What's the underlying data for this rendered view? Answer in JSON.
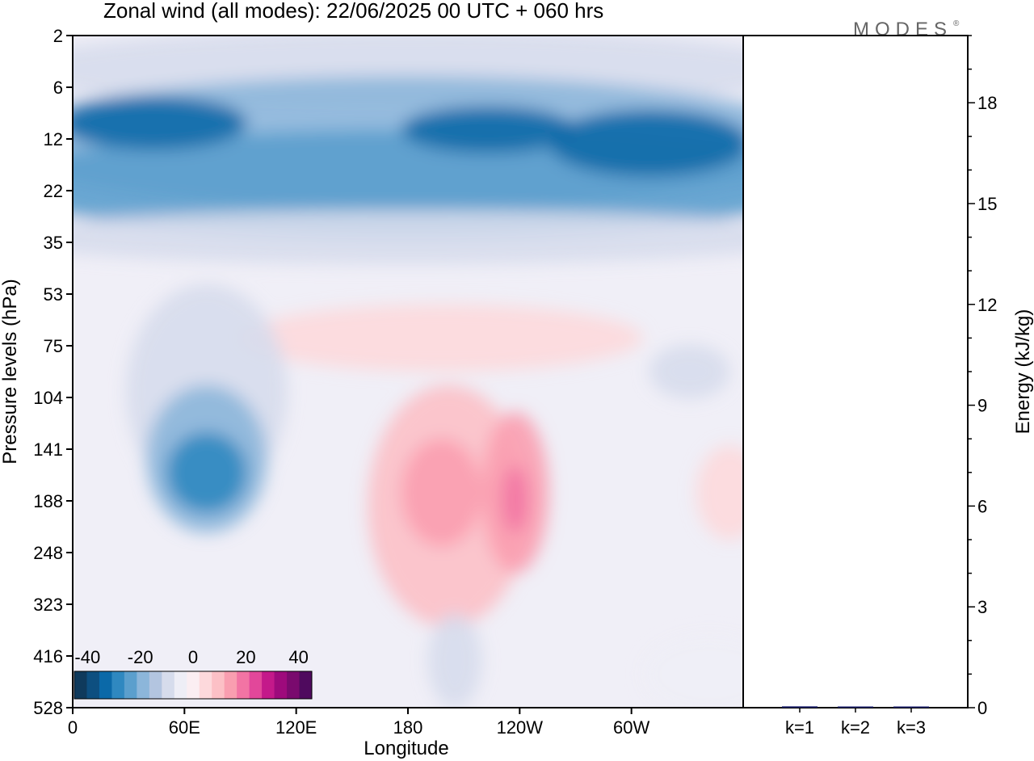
{
  "title": "Zonal wind (all modes):  22/06/2025  00 UTC  + 060 hrs",
  "logo": "MODES",
  "chart_data": [
    {
      "type": "heatmap",
      "xlabel": "Longitude",
      "ylabel": "Pressure levels (hPa)",
      "x_ticks": [
        "0",
        "60E",
        "120E",
        "180",
        "120W",
        "60W"
      ],
      "x_tick_degrees": [
        0,
        60,
        120,
        180,
        240,
        300
      ],
      "xlim": [
        0,
        360
      ],
      "y_ticks": [
        "2",
        "6",
        "12",
        "22",
        "35",
        "53",
        "75",
        "104",
        "141",
        "188",
        "248",
        "323",
        "416",
        "528"
      ],
      "y_scale": "categorical pressure levels, 2 hPa at top, 528 hPa at bottom",
      "colorbar": {
        "tick_labels": [
          "-40",
          "-20",
          "0",
          "20",
          "40"
        ],
        "range": [
          -45,
          45
        ],
        "step": 5,
        "colors": [
          "#0f3a5c",
          "#0d4f80",
          "#0b69a8",
          "#2f88c0",
          "#5b9fcd",
          "#8cb6da",
          "#b3c5e0",
          "#d6dcec",
          "#eeeef6",
          "#fbeef2",
          "#fdd9dc",
          "#fcc0c6",
          "#f99eb0",
          "#f274a4",
          "#e2479a",
          "#c4198a",
          "#9e0a7c",
          "#7a0a6e",
          "#4f0a5e"
        ]
      },
      "field_description_values": [
        {
          "region": "upper stratospheric jet near 12 hPa",
          "value": -35
        },
        {
          "region": "easterly core near 60E-75E at 141-188 hPa",
          "value": -30
        },
        {
          "region": "westerly core near 110W at 141-188 hPa",
          "value": 20
        },
        {
          "region": "westerly band 180-140W at 75-248 hPa",
          "value": 10
        }
      ]
    },
    {
      "type": "bar",
      "categories": [
        "k=1",
        "k=2",
        "k=3"
      ],
      "values": [
        0.04,
        0.02,
        0.01
      ],
      "ylabel": "Energy (kJ/kg)",
      "ylim": [
        0,
        20
      ],
      "y_ticks": [
        "0",
        "3",
        "6",
        "9",
        "12",
        "15",
        "18"
      ]
    }
  ]
}
